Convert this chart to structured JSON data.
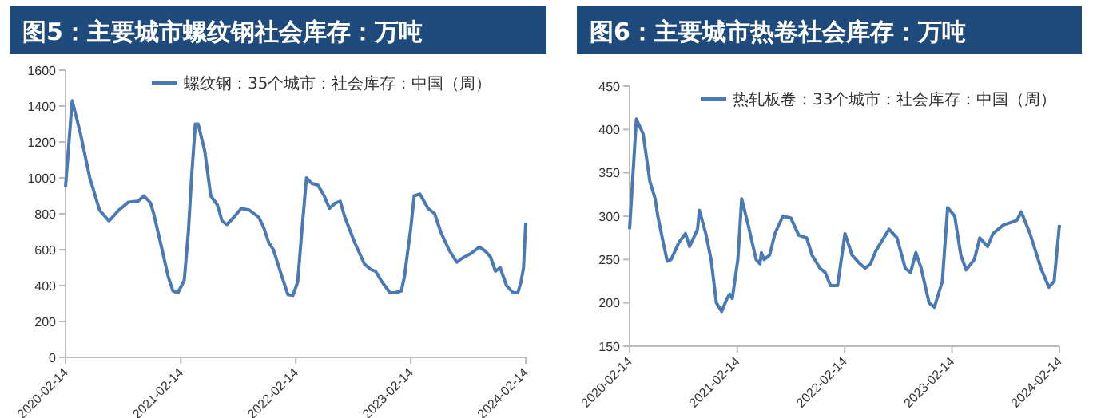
{
  "chart_data": [
    {
      "type": "line",
      "title": "图5：主要城市螺纹钢社会库存：万吨",
      "legend": "top",
      "xlim": [
        "2020-02-14",
        "2024-02-14"
      ],
      "xticks": [
        {
          "value": "2020-02-14",
          "label": "2020-02-14"
        },
        {
          "value": "2021-02-14",
          "label": "2021-02-14"
        },
        {
          "value": "2022-02-14",
          "label": "2022-02-14"
        },
        {
          "value": "2023-02-14",
          "label": "2023-02-14"
        },
        {
          "value": "2024-02-14",
          "label": "2024-02-14"
        }
      ],
      "ylim": [
        0,
        1600
      ],
      "yticks": [
        0,
        200,
        400,
        600,
        800,
        1000,
        1200,
        1400,
        1600
      ],
      "x": [
        "2020-02-14",
        "2020-03-06",
        "2020-04-01",
        "2020-05-01",
        "2020-06-01",
        "2020-07-01",
        "2020-08-01",
        "2020-09-01",
        "2020-10-01",
        "2020-10-20",
        "2020-11-10",
        "2020-11-20",
        "2020-12-10",
        "2021-01-05",
        "2021-01-20",
        "2021-02-05",
        "2021-02-25",
        "2021-03-10",
        "2021-03-20",
        "2021-04-01",
        "2021-04-10",
        "2021-05-01",
        "2021-05-20",
        "2021-06-10",
        "2021-06-25",
        "2021-07-10",
        "2021-08-01",
        "2021-08-25",
        "2021-09-20",
        "2021-10-20",
        "2021-11-05",
        "2021-11-20",
        "2021-12-05",
        "2022-01-01",
        "2022-01-20",
        "2022-02-05",
        "2022-02-20",
        "2022-03-05",
        "2022-03-20",
        "2022-04-05",
        "2022-04-25",
        "2022-05-15",
        "2022-06-01",
        "2022-06-20",
        "2022-07-05",
        "2022-07-20",
        "2022-08-20",
        "2022-09-20",
        "2022-10-10",
        "2022-10-25",
        "2022-11-15",
        "2022-12-10",
        "2022-12-25",
        "2023-01-15",
        "2023-01-25",
        "2023-02-14",
        "2023-02-25",
        "2023-03-15",
        "2023-04-10",
        "2023-05-01",
        "2023-05-20",
        "2023-06-15",
        "2023-07-10",
        "2023-07-25",
        "2023-08-25",
        "2023-09-20",
        "2023-10-10",
        "2023-10-25",
        "2023-11-10",
        "2023-11-25",
        "2023-12-15",
        "2024-01-05",
        "2024-01-20",
        "2024-01-30",
        "2024-02-07",
        "2024-02-14"
      ],
      "series": [
        {
          "name": "螺纹钢：35个城市：社会库存：中国（周）",
          "color": "#4a7ab5",
          "values": [
            950,
            1430,
            1250,
            1000,
            820,
            760,
            820,
            865,
            870,
            900,
            860,
            800,
            650,
            450,
            370,
            360,
            430,
            700,
            1000,
            1300,
            1300,
            1150,
            900,
            850,
            760,
            740,
            780,
            830,
            820,
            780,
            720,
            640,
            600,
            450,
            350,
            345,
            420,
            700,
            1000,
            970,
            960,
            900,
            830,
            860,
            870,
            780,
            640,
            520,
            490,
            480,
            420,
            360,
            360,
            370,
            450,
            720,
            900,
            910,
            830,
            800,
            700,
            600,
            530,
            550,
            580,
            615,
            590,
            560,
            480,
            500,
            400,
            360,
            360,
            420,
            500,
            750
          ]
        }
      ]
    },
    {
      "type": "line",
      "title": "图6：主要城市热卷社会库存：万吨",
      "legend": "top",
      "xlim": [
        "2020-02-14",
        "2024-02-14"
      ],
      "xticks": [
        {
          "value": "2020-02-14",
          "label": "2020-02-14"
        },
        {
          "value": "2021-02-14",
          "label": "2021-02-14"
        },
        {
          "value": "2022-02-14",
          "label": "2022-02-14"
        },
        {
          "value": "2023-02-14",
          "label": "2023-02-14"
        },
        {
          "value": "2024-02-14",
          "label": "2024-02-14"
        }
      ],
      "ylim": [
        150,
        450
      ],
      "yticks": [
        150,
        200,
        250,
        300,
        350,
        400,
        450
      ],
      "x": [
        "2020-02-14",
        "2020-03-08",
        "2020-03-31",
        "2020-04-23",
        "2020-05-11",
        "2020-05-20",
        "2020-06-07",
        "2020-06-21",
        "2020-07-04",
        "2020-07-31",
        "2020-08-22",
        "2020-09-05",
        "2020-10-02",
        "2020-10-08",
        "2020-10-30",
        "2020-11-17",
        "2020-12-05",
        "2020-12-23",
        "2021-01-10",
        "2021-01-19",
        "2021-01-28",
        "2021-02-16",
        "2021-03-01",
        "2021-03-23",
        "2021-04-19",
        "2021-05-02",
        "2021-05-07",
        "2021-05-16",
        "2021-06-04",
        "2021-06-22",
        "2021-07-19",
        "2021-08-15",
        "2021-09-11",
        "2021-10-08",
        "2021-10-26",
        "2021-11-22",
        "2021-12-10",
        "2021-12-28",
        "2022-01-21",
        "2022-02-15",
        "2022-03-11",
        "2022-04-07",
        "2022-04-25",
        "2022-05-13",
        "2022-05-31",
        "2022-06-18",
        "2022-07-15",
        "2022-08-11",
        "2022-09-08",
        "2022-09-26",
        "2022-10-14",
        "2022-11-01",
        "2022-11-28",
        "2022-12-16",
        "2023-01-12",
        "2023-01-30",
        "2023-02-23",
        "2023-03-16",
        "2023-04-03",
        "2023-05-01",
        "2023-05-19",
        "2023-06-15",
        "2023-07-03",
        "2023-08-08",
        "2023-09-22",
        "2023-10-07",
        "2023-11-06",
        "2023-12-13",
        "2024-01-09",
        "2024-01-27",
        "2024-02-14"
      ],
      "series": [
        {
          "name": "热轧板卷：33个城市：社会库存：中国（周）",
          "color": "#4a7ab5",
          "values": [
            285,
            412,
            395,
            340,
            320,
            300,
            270,
            248,
            250,
            270,
            280,
            265,
            285,
            307,
            280,
            250,
            200,
            190,
            205,
            210,
            205,
            250,
            320,
            290,
            250,
            245,
            258,
            250,
            255,
            280,
            300,
            298,
            278,
            275,
            255,
            240,
            235,
            220,
            220,
            280,
            255,
            245,
            240,
            245,
            260,
            270,
            285,
            275,
            240,
            235,
            258,
            240,
            200,
            195,
            225,
            310,
            300,
            255,
            238,
            250,
            275,
            265,
            280,
            290,
            295,
            305,
            280,
            240,
            218,
            225,
            290
          ]
        }
      ]
    }
  ]
}
